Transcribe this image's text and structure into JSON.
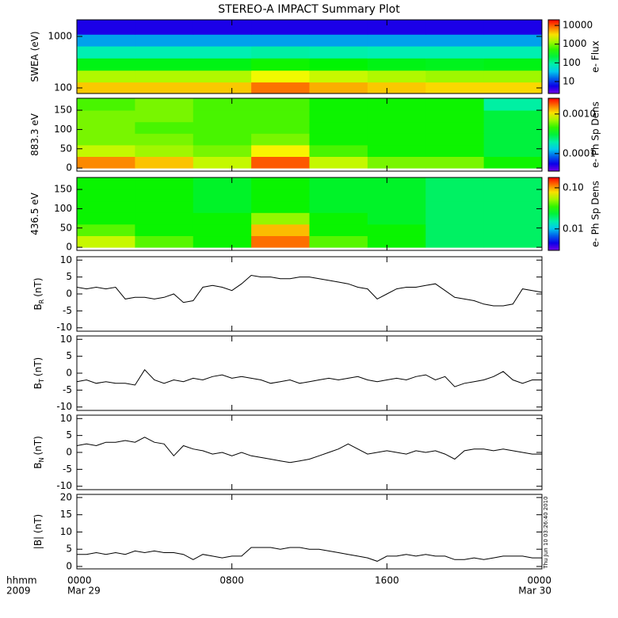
{
  "title": "STEREO-A IMPACT Summary Plot",
  "timestamp": "Thu Jun 10 03:26:40 2010",
  "x_axis": {
    "xlim": [
      0,
      24
    ],
    "xticks": [
      {
        "value": 0,
        "label": "0000"
      },
      {
        "value": 8,
        "label": "0800"
      },
      {
        "value": 16,
        "label": "1600"
      },
      {
        "value": 24,
        "label": "0000"
      }
    ],
    "date_labels": [
      {
        "value": 0,
        "label": "Mar 29"
      },
      {
        "value": 24,
        "label": "Mar 30"
      }
    ],
    "unit_label": "hhmm",
    "year": "2009"
  },
  "chart_data": [
    {
      "type": "heatmap",
      "ylabel": "SWEA (eV)",
      "ylog": true,
      "ylim": [
        78,
        2100
      ],
      "yticks": [
        100,
        1000
      ],
      "y_edges": [
        78,
        130,
        220,
        380,
        650,
        1100,
        2100
      ],
      "x_edges": [
        0,
        3,
        6,
        9,
        12,
        15,
        18,
        21,
        24
      ],
      "z": [
        [
          4000,
          4000,
          4000,
          8000,
          5000,
          4000,
          3500,
          3500
        ],
        [
          1500,
          1500,
          1500,
          2500,
          1800,
          1500,
          1300,
          1300
        ],
        [
          300,
          300,
          300,
          400,
          350,
          300,
          280,
          300
        ],
        [
          80,
          80,
          80,
          90,
          85,
          80,
          80,
          80
        ],
        [
          25,
          25,
          25,
          25,
          25,
          25,
          25,
          25
        ],
        [
          5,
          5,
          5,
          5,
          5,
          5,
          5,
          5
        ]
      ],
      "clim": [
        2.3,
        20000
      ],
      "clog": true,
      "cticks": [
        10,
        100,
        1000,
        10000
      ],
      "clabel": "e- Flux",
      "colormap": "rainbow"
    },
    {
      "type": "heatmap",
      "ylabel": "883.3 eV",
      "ylog": false,
      "ylim": [
        -8,
        181
      ],
      "yticks": [
        0,
        50,
        100,
        150
      ],
      "y_edges": [
        0,
        30,
        60,
        90,
        120,
        150,
        180
      ],
      "x_edges": [
        0,
        3,
        6,
        9,
        12,
        15,
        18,
        21,
        24
      ],
      "z": [
        [
          0.0015,
          0.0012,
          0.0008,
          0.0018,
          0.0008,
          0.0006,
          0.0006,
          0.0004
        ],
        [
          0.0008,
          0.0007,
          0.0006,
          0.001,
          0.0005,
          0.0004,
          0.0004,
          0.0003
        ],
        [
          0.0006,
          0.0006,
          0.0005,
          0.0006,
          0.0004,
          0.0004,
          0.0004,
          0.0003
        ],
        [
          0.0006,
          0.0005,
          0.0005,
          0.0005,
          0.0004,
          0.0004,
          0.0004,
          0.0003
        ],
        [
          0.0006,
          0.0006,
          0.0005,
          0.0005,
          0.0004,
          0.0004,
          0.0004,
          0.0003
        ],
        [
          0.0005,
          0.0006,
          0.0005,
          0.0005,
          0.0004,
          0.0004,
          0.0004,
          0.0002
        ]
      ],
      "clim": [
        3.6e-05,
        0.0025
      ],
      "clog": true,
      "cticks": [
        0.0001,
        {
          "value": 0.001,
          "label": "0.0010"
        }
      ],
      "clabel": "e- Ph Sp Dens",
      "colormap": "rainbow"
    },
    {
      "type": "heatmap",
      "ylabel": "436.5 eV",
      "ylog": false,
      "ylim": [
        -8,
        181
      ],
      "yticks": [
        0,
        50,
        100,
        150
      ],
      "y_edges": [
        0,
        30,
        60,
        90,
        120,
        150,
        180
      ],
      "x_edges": [
        0,
        3,
        6,
        9,
        12,
        15,
        18,
        21,
        24
      ],
      "z": [
        [
          0.06,
          0.04,
          0.03,
          0.12,
          0.04,
          0.03,
          0.02,
          0.02
        ],
        [
          0.04,
          0.03,
          0.03,
          0.09,
          0.03,
          0.03,
          0.02,
          0.02
        ],
        [
          0.03,
          0.03,
          0.03,
          0.05,
          0.03,
          0.025,
          0.02,
          0.02
        ],
        [
          0.03,
          0.03,
          0.025,
          0.03,
          0.025,
          0.025,
          0.02,
          0.02
        ],
        [
          0.03,
          0.03,
          0.025,
          0.03,
          0.025,
          0.025,
          0.02,
          0.02
        ],
        [
          0.03,
          0.03,
          0.025,
          0.03,
          0.025,
          0.025,
          0.02,
          0.02
        ]
      ],
      "clim": [
        0.003,
        0.178
      ],
      "clog": true,
      "cticks": [
        0.01,
        {
          "value": 0.1,
          "label": "0.10"
        }
      ],
      "clabel": "e- Ph Sp Dens",
      "colormap": "rainbow"
    },
    {
      "type": "line",
      "ylabel": "B",
      "ylabel_subscript": "R",
      "ylabel_unit": "(nT)",
      "color": "#000000",
      "ylim": [
        -11,
        11
      ],
      "yticks": [
        -10,
        -5,
        0,
        5,
        10
      ],
      "x": [
        0,
        0.5,
        1,
        1.5,
        2,
        2.5,
        3,
        3.5,
        4,
        4.5,
        5,
        5.5,
        6,
        6.5,
        7,
        7.5,
        8,
        8.5,
        9,
        9.5,
        10,
        10.5,
        11,
        11.5,
        12,
        12.5,
        13,
        13.5,
        14,
        14.5,
        15,
        15.5,
        16,
        16.5,
        17,
        17.5,
        18,
        18.5,
        19,
        19.5,
        20,
        20.5,
        21,
        21.5,
        22,
        22.5,
        23,
        23.5,
        24
      ],
      "values": [
        2,
        1.5,
        2,
        1.5,
        2,
        -1.5,
        -1,
        -1,
        -1.5,
        -1,
        0,
        -2.5,
        -2,
        2,
        2.5,
        2,
        1,
        3,
        5.5,
        5,
        5,
        4.5,
        4.5,
        5,
        5,
        4.5,
        4,
        3.5,
        3,
        2,
        1.5,
        -1.5,
        0,
        1.5,
        2,
        2,
        2.5,
        3,
        1,
        -1,
        -1.5,
        -2,
        -3,
        -3.5,
        -3.5,
        -3,
        1.5,
        1,
        0.5
      ]
    },
    {
      "type": "line",
      "ylabel": "B",
      "ylabel_subscript": "T",
      "ylabel_unit": "(nT)",
      "color": "#000000",
      "ylim": [
        -11,
        11
      ],
      "yticks": [
        -10,
        -5,
        0,
        5,
        10
      ],
      "x": [
        0,
        0.5,
        1,
        1.5,
        2,
        2.5,
        3,
        3.5,
        4,
        4.5,
        5,
        5.5,
        6,
        6.5,
        7,
        7.5,
        8,
        8.5,
        9,
        9.5,
        10,
        10.5,
        11,
        11.5,
        12,
        12.5,
        13,
        13.5,
        14,
        14.5,
        15,
        15.5,
        16,
        16.5,
        17,
        17.5,
        18,
        18.5,
        19,
        19.5,
        20,
        20.5,
        21,
        21.5,
        22,
        22.5,
        23,
        23.5,
        24
      ],
      "values": [
        -2.5,
        -2,
        -3,
        -2.5,
        -3,
        -3,
        -3.5,
        1,
        -2,
        -3,
        -2,
        -2.5,
        -1.5,
        -2,
        -1,
        -0.5,
        -1.5,
        -1,
        -1.5,
        -2,
        -3,
        -2.5,
        -2,
        -3,
        -2.5,
        -2,
        -1.5,
        -2,
        -1.5,
        -1,
        -2,
        -2.5,
        -2,
        -1.5,
        -2,
        -1,
        -0.5,
        -2,
        -1,
        -4,
        -3,
        -2.5,
        -2,
        -1,
        0.5,
        -2,
        -3,
        -2,
        -2
      ]
    },
    {
      "type": "line",
      "ylabel": "B",
      "ylabel_subscript": "N",
      "ylabel_unit": "(nT)",
      "color": "#000000",
      "ylim": [
        -11,
        11
      ],
      "yticks": [
        -10,
        -5,
        0,
        5,
        10
      ],
      "x": [
        0,
        0.5,
        1,
        1.5,
        2,
        2.5,
        3,
        3.5,
        4,
        4.5,
        5,
        5.5,
        6,
        6.5,
        7,
        7.5,
        8,
        8.5,
        9,
        9.5,
        10,
        10.5,
        11,
        11.5,
        12,
        12.5,
        13,
        13.5,
        14,
        14.5,
        15,
        15.5,
        16,
        16.5,
        17,
        17.5,
        18,
        18.5,
        19,
        19.5,
        20,
        20.5,
        21,
        21.5,
        22,
        22.5,
        23,
        23.5,
        24
      ],
      "values": [
        2,
        2.5,
        2,
        3,
        3,
        3.5,
        3,
        4.5,
        3,
        2.5,
        -1,
        2,
        1,
        0.5,
        -0.5,
        0,
        -1,
        0,
        -1,
        -1.5,
        -2,
        -2.5,
        -3,
        -2.5,
        -2,
        -1,
        0,
        1,
        2.5,
        1,
        -0.5,
        0,
        0.5,
        0,
        -0.5,
        0.5,
        0,
        0.5,
        -0.5,
        -2,
        0.5,
        1,
        1,
        0.5,
        1,
        0.5,
        0,
        -0.5,
        -0.5
      ]
    },
    {
      "type": "line",
      "ylabel": "|B| (nT)",
      "color": "#000000",
      "ylim": [
        -0.7,
        20.9
      ],
      "yticks": [
        0,
        5,
        10,
        15,
        20
      ],
      "x": [
        0,
        0.5,
        1,
        1.5,
        2,
        2.5,
        3,
        3.5,
        4,
        4.5,
        5,
        5.5,
        6,
        6.5,
        7,
        7.5,
        8,
        8.5,
        9,
        9.5,
        10,
        10.5,
        11,
        11.5,
        12,
        12.5,
        13,
        13.5,
        14,
        14.5,
        15,
        15.5,
        16,
        16.5,
        17,
        17.5,
        18,
        18.5,
        19,
        19.5,
        20,
        20.5,
        21,
        21.5,
        22,
        22.5,
        23,
        23.5,
        24
      ],
      "values": [
        3.5,
        3.5,
        4,
        3.5,
        4,
        3.5,
        4.5,
        4,
        4.5,
        4,
        4,
        3.5,
        2,
        3.5,
        3,
        2.5,
        3,
        3,
        5.5,
        5.5,
        5.5,
        5,
        5.5,
        5.5,
        5,
        5,
        4.5,
        4,
        3.5,
        3,
        2.5,
        1.5,
        3,
        3,
        3.5,
        3,
        3.5,
        3,
        3,
        2,
        2,
        2.5,
        2,
        2.5,
        3,
        3,
        3,
        2.5,
        2.5
      ]
    }
  ]
}
